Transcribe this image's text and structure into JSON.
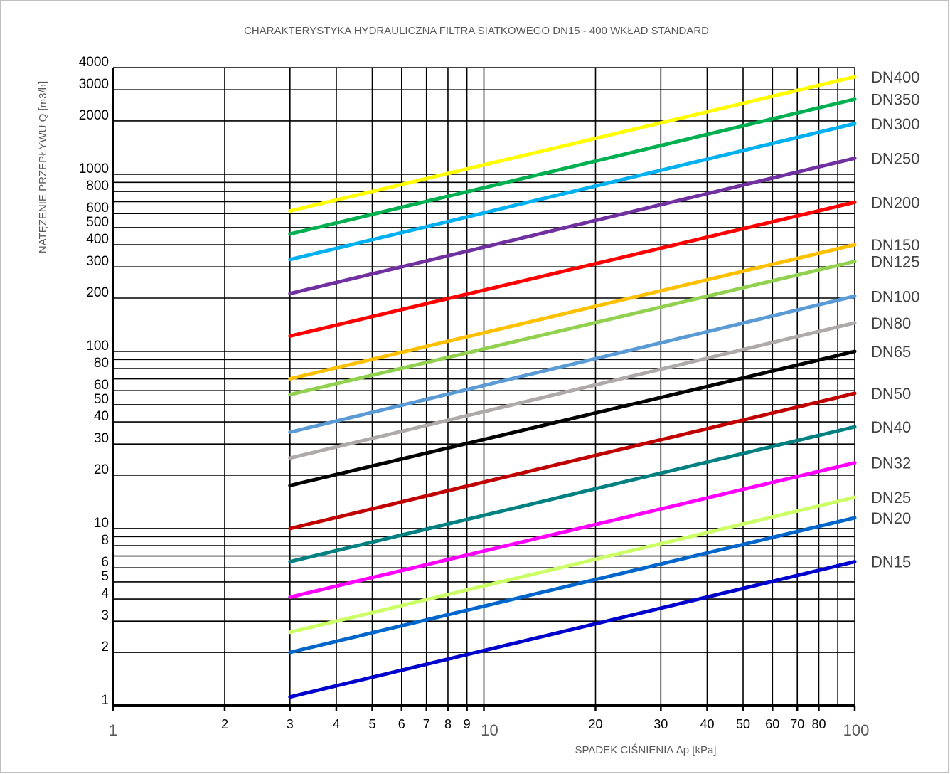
{
  "chart_data": {
    "type": "line",
    "title": "CHARAKTERYSTYKA HYDRAULICZNA  FILTRA SIATKOWEGO DN15 - 400 WKŁAD STANDARD",
    "xlabel": "SPADEK CIŚNIENIA Δp  [kPa]",
    "ylabel": "NATĘZENIE PRZEPŁYWU Q  [m3/h]",
    "x_scale": "log",
    "y_scale": "log",
    "xlim": [
      1,
      100
    ],
    "ylim": [
      1,
      4000
    ],
    "grid": true,
    "legend": "right-end labels",
    "x_ticks": [
      {
        "v": 1,
        "label": "1",
        "big": true
      },
      {
        "v": 2,
        "label": "2"
      },
      {
        "v": 3,
        "label": "3"
      },
      {
        "v": 4,
        "label": "4"
      },
      {
        "v": 5,
        "label": "5"
      },
      {
        "v": 6,
        "label": "6"
      },
      {
        "v": 7,
        "label": "7"
      },
      {
        "v": 8,
        "label": "8"
      },
      {
        "v": 9,
        "label": "9"
      },
      {
        "v": 10,
        "label": "10",
        "big": true
      },
      {
        "v": 20,
        "label": "20"
      },
      {
        "v": 30,
        "label": "30"
      },
      {
        "v": 40,
        "label": "40"
      },
      {
        "v": 50,
        "label": "50"
      },
      {
        "v": 60,
        "label": "60"
      },
      {
        "v": 70,
        "label": "70"
      },
      {
        "v": 80,
        "label": "80"
      },
      {
        "v": 100,
        "label": "100",
        "big": true
      }
    ],
    "x_grid": [
      1,
      2,
      3,
      4,
      5,
      6,
      7,
      8,
      9,
      10,
      20,
      30,
      40,
      50,
      60,
      70,
      80,
      90,
      100
    ],
    "y_ticks": [
      {
        "v": 1,
        "label": "1"
      },
      {
        "v": 2,
        "label": "2"
      },
      {
        "v": 3,
        "label": "3"
      },
      {
        "v": 4,
        "label": "4"
      },
      {
        "v": 5,
        "label": "5"
      },
      {
        "v": 6,
        "label": "6"
      },
      {
        "v": 8,
        "label": "8"
      },
      {
        "v": 10,
        "label": "10"
      },
      {
        "v": 20,
        "label": "20"
      },
      {
        "v": 30,
        "label": "30"
      },
      {
        "v": 40,
        "label": "40"
      },
      {
        "v": 50,
        "label": "50"
      },
      {
        "v": 60,
        "label": "60"
      },
      {
        "v": 80,
        "label": "80"
      },
      {
        "v": 100,
        "label": "100"
      },
      {
        "v": 200,
        "label": "200"
      },
      {
        "v": 300,
        "label": "300"
      },
      {
        "v": 400,
        "label": "400"
      },
      {
        "v": 500,
        "label": "500"
      },
      {
        "v": 600,
        "label": "600"
      },
      {
        "v": 800,
        "label": "800"
      },
      {
        "v": 1000,
        "label": "1000"
      },
      {
        "v": 2000,
        "label": "2000"
      },
      {
        "v": 3000,
        "label": "3000"
      },
      {
        "v": 4000,
        "label": "4000"
      }
    ],
    "y_grid": [
      2,
      3,
      4,
      5,
      6,
      7,
      8,
      9,
      10,
      20,
      30,
      40,
      50,
      60,
      70,
      80,
      90,
      100,
      200,
      300,
      400,
      500,
      600,
      700,
      800,
      900,
      1000,
      2000,
      3000,
      4000
    ],
    "series": [
      {
        "name": "DN400",
        "color": "#ffff00",
        "x": [
          3,
          100
        ],
        "y": [
          620,
          3550
        ]
      },
      {
        "name": "DN350",
        "color": "#00b050",
        "x": [
          3,
          100
        ],
        "y": [
          460,
          2650
        ]
      },
      {
        "name": "DN300",
        "color": "#00b0f0",
        "x": [
          3,
          100
        ],
        "y": [
          330,
          1930
        ]
      },
      {
        "name": "DN250",
        "color": "#7030a0",
        "x": [
          3,
          100
        ],
        "y": [
          212,
          1230
        ]
      },
      {
        "name": "DN200",
        "color": "#ff0000",
        "x": [
          3,
          100
        ],
        "y": [
          122,
          695
        ]
      },
      {
        "name": "DN150",
        "color": "#ffc000",
        "x": [
          3,
          100
        ],
        "y": [
          70,
          400
        ]
      },
      {
        "name": "DN125",
        "color": "#92d050",
        "x": [
          3,
          100
        ],
        "y": [
          57,
          322
        ]
      },
      {
        "name": "DN100",
        "color": "#5b9bd5",
        "x": [
          3,
          100
        ],
        "y": [
          35,
          205
        ]
      },
      {
        "name": "DN80",
        "color": "#aeaaaa",
        "x": [
          3,
          100
        ],
        "y": [
          25,
          145
        ]
      },
      {
        "name": "DN65",
        "color": "#000000",
        "x": [
          3,
          100
        ],
        "y": [
          17.5,
          100
        ]
      },
      {
        "name": "DN50",
        "color": "#c00000",
        "x": [
          3,
          100
        ],
        "y": [
          10,
          58
        ]
      },
      {
        "name": "DN40",
        "color": "#008080",
        "x": [
          3,
          100
        ],
        "y": [
          6.5,
          37.5
        ]
      },
      {
        "name": "DN32",
        "color": "#ff00ff",
        "x": [
          3,
          100
        ],
        "y": [
          4.1,
          23.5
        ]
      },
      {
        "name": "DN25",
        "color": "#ccff66",
        "x": [
          3,
          100
        ],
        "y": [
          2.6,
          15
        ]
      },
      {
        "name": "DN20",
        "color": "#0066cc",
        "x": [
          3,
          100
        ],
        "y": [
          2.0,
          11.5
        ]
      },
      {
        "name": "DN15",
        "color": "#0000cc",
        "x": [
          3,
          100
        ],
        "y": [
          1.12,
          6.5
        ]
      }
    ]
  }
}
